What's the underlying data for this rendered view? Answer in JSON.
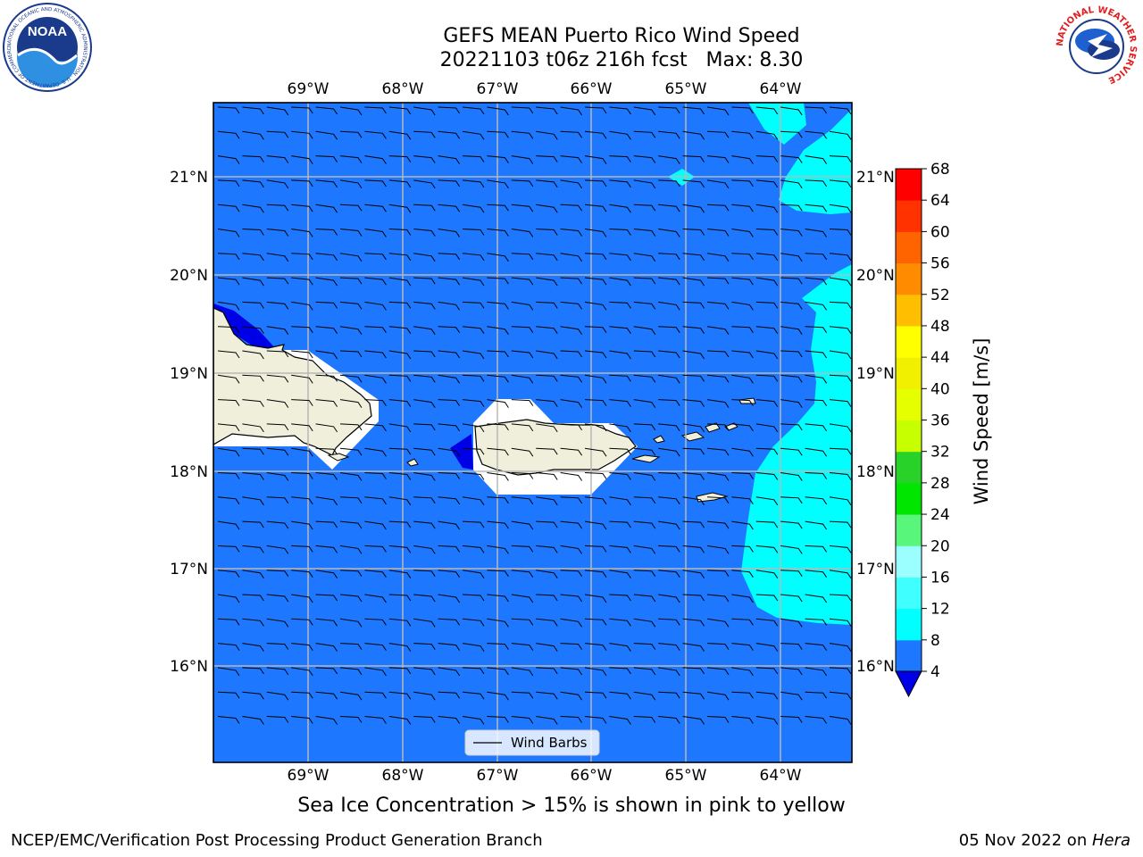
{
  "header": {
    "title_line1": "GEFS MEAN Puerto Rico Wind Speed",
    "title_line2": "20221103 t06z 216h fcst   Max: 8.30"
  },
  "logos": {
    "noaa_text": "NOAA",
    "noaa_ring_text": "NATIONAL OCEANIC AND ATMOSPHERIC ADMINISTRATION · U.S. DEPARTMENT OF COMMERCE",
    "nws_ring_text": "NATIONAL WEATHER SERVICE"
  },
  "map": {
    "longitude_labels": [
      "69°W",
      "68°W",
      "67°W",
      "66°W",
      "65°W",
      "64°W"
    ],
    "latitude_labels": [
      "21°N",
      "20°N",
      "19°N",
      "18°N",
      "17°N",
      "16°N"
    ],
    "legend_label": "Wind Barbs",
    "colors": {
      "ocean_fill": "#1e78ff",
      "fill_8_12": "#00ffff",
      "fill_below_4": "#0000e6",
      "land": "#efefdc"
    }
  },
  "colorbar": {
    "label": "Wind Speed [m/s]",
    "tick_labels": [
      "68",
      "64",
      "60",
      "56",
      "52",
      "48",
      "44",
      "40",
      "36",
      "32",
      "28",
      "24",
      "20",
      "16",
      "12",
      "8",
      "4"
    ],
    "levels": [
      4,
      8,
      12,
      16,
      20,
      24,
      28,
      32,
      36,
      40,
      44,
      48,
      52,
      56,
      60,
      64,
      68
    ],
    "colors": [
      "#1e78ff",
      "#00ffff",
      "#40ffff",
      "#9cffff",
      "#58f67a",
      "#00e600",
      "#28d228",
      "#c8ff00",
      "#e6ff00",
      "#f0f000",
      "#ffff00",
      "#ffbe00",
      "#ff8c00",
      "#ff6400",
      "#ff3200",
      "#ff0000"
    ],
    "under_color": "#0000e6"
  },
  "subtitle": "Sea Ice Concentration > 15% is shown in pink to yellow",
  "footer": {
    "left": "NCEP/EMC/Verification Post Processing Product Generation Branch",
    "right_prefix": "05 Nov 2022 on ",
    "right_host": "Hera"
  }
}
